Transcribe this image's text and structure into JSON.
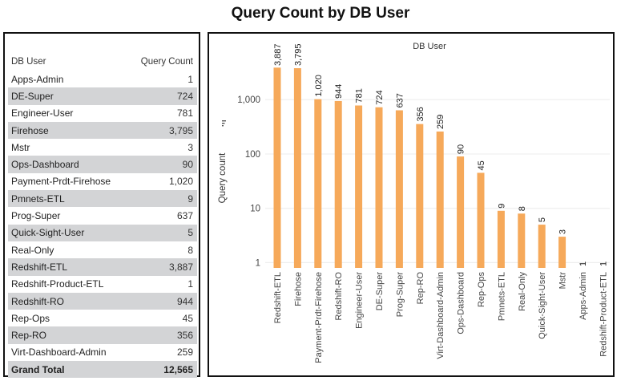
{
  "title": "Query Count by DB User",
  "table": {
    "col_user": "DB User",
    "col_count": "Query Count",
    "rows": [
      {
        "user": "Apps-Admin",
        "count": "1"
      },
      {
        "user": "DE-Super",
        "count": "724"
      },
      {
        "user": "Engineer-User",
        "count": "781"
      },
      {
        "user": "Firehose",
        "count": "3,795"
      },
      {
        "user": "Mstr",
        "count": "3"
      },
      {
        "user": "Ops-Dashboard",
        "count": "90"
      },
      {
        "user": "Payment-Prdt-Firehose",
        "count": "1,020"
      },
      {
        "user": "Pmnets-ETL",
        "count": "9"
      },
      {
        "user": "Prog-Super",
        "count": "637"
      },
      {
        "user": "Quick-Sight-User",
        "count": "5"
      },
      {
        "user": "Real-Only",
        "count": "8"
      },
      {
        "user": "Redshift-ETL",
        "count": "3,887"
      },
      {
        "user": "Redshift-Product-ETL",
        "count": "1"
      },
      {
        "user": "Redshift-RO",
        "count": "944"
      },
      {
        "user": "Rep-Ops",
        "count": "45"
      },
      {
        "user": "Rep-RO",
        "count": "356"
      },
      {
        "user": "Virt-Dashboard-Admin",
        "count": "259"
      }
    ],
    "total_label": "Grand Total",
    "total_value": "12,565"
  },
  "chart_data": {
    "type": "bar",
    "title": "DB User",
    "ylabel": "Query count",
    "yscale": "log",
    "ylim": [
      0.8,
      4500
    ],
    "yticks": [
      1,
      10,
      100,
      1000
    ],
    "ytick_labels": [
      "1",
      "10",
      "100",
      "1,000"
    ],
    "categories": [
      "Redshift-ETL",
      "Firehose",
      "Payment-Prdt-Firehose",
      "Redshift-RO",
      "Engineer-User",
      "DE-Super",
      "Prog-Super",
      "Rep-RO",
      "Virt-Dashboard-Admin",
      "Ops-Dashboard",
      "Rep-Ops",
      "Pmnets-ETL",
      "Real-Only",
      "Quick-Sight-User",
      "Mstr",
      "Apps-Admin",
      "Redshift-Product-ETL"
    ],
    "values": [
      3887,
      3795,
      1020,
      944,
      781,
      724,
      637,
      356,
      259,
      90,
      45,
      9,
      8,
      5,
      3,
      1,
      1
    ],
    "value_labels": [
      "3,887",
      "3,795",
      "1,020",
      "944",
      "781",
      "724",
      "637",
      "356",
      "259",
      "90",
      "45",
      "9",
      "8",
      "5",
      "3",
      "1",
      "1"
    ],
    "bar_color": "#f6a95a",
    "grid": true
  }
}
